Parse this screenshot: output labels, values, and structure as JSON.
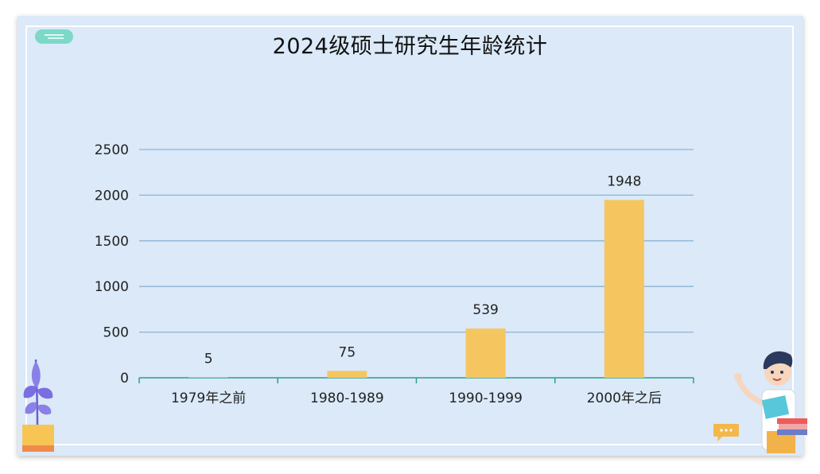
{
  "title": "2024级硕士研究生年龄统计",
  "chart_data": {
    "type": "bar",
    "title": "2024级硕士研究生年龄统计",
    "categories": [
      "1979年之前",
      "1980-1989",
      "1990-1999",
      "2000年之后"
    ],
    "values": [
      5,
      75,
      539,
      1948
    ],
    "ylim": [
      0,
      2500
    ],
    "yticks": [
      0,
      500,
      1000,
      1500,
      2000,
      2500
    ],
    "grid": true,
    "bar_color": "#f5c65f",
    "grid_color": "#8db4d6",
    "axis_color": "#2e9e8e"
  },
  "decor": {
    "plant_icon": "plant-in-pot-icon",
    "person_icon": "teacher-holding-book-icon",
    "chat_icon": "speech-bubble-icon",
    "note_icon": "note-tag-icon"
  }
}
